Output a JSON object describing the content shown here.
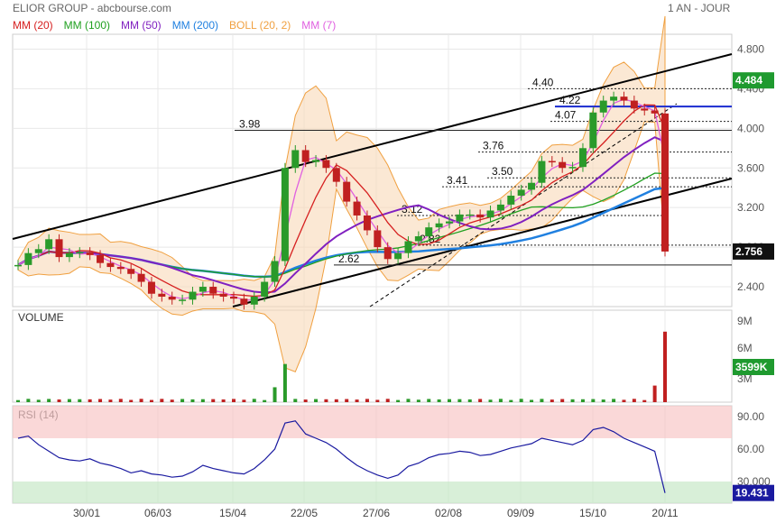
{
  "header": {
    "title": "ELIOR GROUP - abcbourse.com",
    "period": "1 AN - JOUR",
    "legend": [
      {
        "label": "MM (20)",
        "color": "#d62020"
      },
      {
        "label": "MM (100)",
        "color": "#20a020"
      },
      {
        "label": "MM (50)",
        "color": "#8020c0"
      },
      {
        "label": "MM (200)",
        "color": "#2080e0"
      },
      {
        "label": "BOLL (20, 2)",
        "color": "#f0a040"
      },
      {
        "label": "MM (7)",
        "color": "#e060e0"
      }
    ]
  },
  "chart_data": [
    {
      "type": "candlestick",
      "title": "ELIOR GROUP",
      "x_ticks": [
        "30/01",
        "06/03",
        "15/04",
        "22/05",
        "27/06",
        "02/08",
        "09/09",
        "15/10",
        "20/11"
      ],
      "y_ticks": [
        "2.400",
        "2.800",
        "3.200",
        "3.600",
        "4.000",
        "4.400",
        "4.800"
      ],
      "ylim": [
        2.2,
        4.95
      ],
      "last_price": "4.484",
      "close_label": "2.756",
      "closes": [
        2.62,
        2.74,
        2.78,
        2.88,
        2.7,
        2.74,
        2.75,
        2.72,
        2.64,
        2.6,
        2.58,
        2.53,
        2.45,
        2.33,
        2.3,
        2.27,
        2.27,
        2.35,
        2.4,
        2.33,
        2.3,
        2.28,
        2.22,
        2.3,
        2.45,
        2.66,
        3.6,
        3.78,
        3.66,
        3.68,
        3.6,
        3.46,
        3.26,
        3.12,
        2.97,
        2.8,
        2.68,
        2.74,
        2.86,
        2.91,
        3.0,
        3.04,
        3.06,
        3.13,
        3.13,
        3.1,
        3.17,
        3.23,
        3.32,
        3.38,
        3.45,
        3.67,
        3.66,
        3.6,
        3.61,
        3.8,
        4.16,
        4.28,
        4.32,
        4.28,
        4.2,
        4.18,
        4.15,
        2.756
      ],
      "horizontal_levels": [
        {
          "label": "4.40",
          "value": 4.4
        },
        {
          "label": "4.22",
          "value": 4.22
        },
        {
          "label": "4.07",
          "value": 4.07
        },
        {
          "label": "3.98",
          "value": 3.98
        },
        {
          "label": "3.76",
          "value": 3.76
        },
        {
          "label": "3.50",
          "value": 3.5
        },
        {
          "label": "3.41",
          "value": 3.41
        },
        {
          "label": "3.12",
          "value": 3.12
        },
        {
          "label": "2.82",
          "value": 2.82
        },
        {
          "label": "2.62",
          "value": 2.62
        }
      ],
      "moving_averages": [
        "MM (20)",
        "MM (100)",
        "MM (50)",
        "MM (200)",
        "BOLL (20, 2)",
        "MM (7)"
      ]
    },
    {
      "type": "bar",
      "title": "VOLUME",
      "y_ticks": [
        "9M",
        "6M",
        "3M"
      ],
      "last_value": "3599K"
    },
    {
      "type": "line",
      "title": "RSI (14)",
      "y_ticks": [
        "90.00",
        "60.00",
        "30.000"
      ],
      "last_value": "19.431",
      "values": [
        70,
        72,
        64,
        58,
        52,
        50,
        49,
        51,
        47,
        45,
        42,
        38,
        40,
        37,
        36,
        34,
        35,
        39,
        45,
        42,
        40,
        38,
        37,
        42,
        50,
        60,
        84,
        86,
        74,
        70,
        66,
        60,
        52,
        45,
        40,
        36,
        33,
        36,
        44,
        47,
        52,
        55,
        56,
        58,
        57,
        54,
        55,
        58,
        61,
        63,
        65,
        70,
        68,
        66,
        64,
        68,
        78,
        80,
        76,
        70,
        66,
        62,
        58,
        19.431
      ]
    }
  ]
}
